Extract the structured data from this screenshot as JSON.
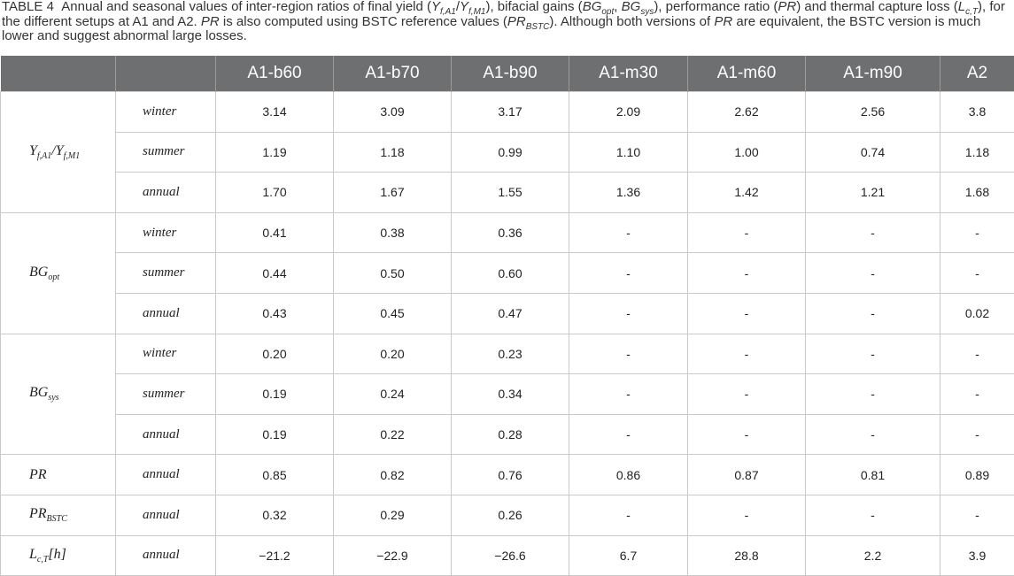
{
  "caption": [
    "TABLE 4",
    "Annual and seasonal values of inter-region ratios of final yield (",
    "Y",
    "f,A1",
    "/",
    "Y",
    "f,M1",
    "), bifacial gains (",
    "BG",
    "opt",
    ", ",
    "BG",
    "sys",
    "), performance ratio (",
    "PR",
    ") and thermal capture loss (",
    "L",
    "c,T",
    "), for the different setups at A1 and A2. ",
    "PR",
    " is also computed using BSTC reference values (",
    "PR",
    "BSTC",
    "). Although both versions of ",
    "PR",
    " are equivalent, the BSTC version is much lower and suggest abnormal large losses."
  ],
  "table": {
    "columns": [
      "A1-b60",
      "A1-b70",
      "A1-b90",
      "A1-m30",
      "A1-m60",
      "A1-m90",
      "A2"
    ],
    "groups": [
      {
        "label": [
          "Y",
          "f,A1",
          "/Y",
          "f,M1"
        ],
        "rows": [
          {
            "season": "winter",
            "values": [
              "3.14",
              "3.09",
              "3.17",
              "2.09",
              "2.62",
              "2.56",
              "3.8"
            ]
          },
          {
            "season": "summer",
            "values": [
              "1.19",
              "1.18",
              "0.99",
              "1.10",
              "1.00",
              "0.74",
              "1.18"
            ]
          },
          {
            "season": "annual",
            "values": [
              "1.70",
              "1.67",
              "1.55",
              "1.36",
              "1.42",
              "1.21",
              "1.68"
            ]
          }
        ]
      },
      {
        "label": [
          "BG",
          "opt"
        ],
        "rows": [
          {
            "season": "winter",
            "values": [
              "0.41",
              "0.38",
              "0.36",
              "-",
              "-",
              "-",
              "-"
            ]
          },
          {
            "season": "summer",
            "values": [
              "0.44",
              "0.50",
              "0.60",
              "-",
              "-",
              "-",
              "-"
            ]
          },
          {
            "season": "annual",
            "values": [
              "0.43",
              "0.45",
              "0.47",
              "-",
              "-",
              "-",
              "0.02"
            ]
          }
        ]
      },
      {
        "label": [
          "BG",
          "sys"
        ],
        "rows": [
          {
            "season": "winter",
            "values": [
              "0.20",
              "0.20",
              "0.23",
              "-",
              "-",
              "-",
              "-"
            ]
          },
          {
            "season": "summer",
            "values": [
              "0.19",
              "0.24",
              "0.34",
              "-",
              "-",
              "-",
              "-"
            ]
          },
          {
            "season": "annual",
            "values": [
              "0.19",
              "0.22",
              "0.28",
              "-",
              "-",
              "-",
              "-"
            ]
          }
        ]
      },
      {
        "label": [
          "PR"
        ],
        "rows": [
          {
            "season": "annual",
            "values": [
              "0.85",
              "0.82",
              "0.76",
              "0.86",
              "0.87",
              "0.81",
              "0.89"
            ]
          }
        ]
      },
      {
        "label": [
          "PR",
          "BSTC"
        ],
        "rows": [
          {
            "season": "annual",
            "values": [
              "0.32",
              "0.29",
              "0.26",
              "-",
              "-",
              "-",
              "-"
            ]
          }
        ]
      },
      {
        "label": [
          "L",
          "c,T",
          "[h]"
        ],
        "rows": [
          {
            "season": "annual",
            "values": [
              "−21.2",
              "−22.9",
              "−26.6",
              "6.7",
              "28.8",
              "2.2",
              "3.9"
            ]
          }
        ]
      }
    ]
  }
}
